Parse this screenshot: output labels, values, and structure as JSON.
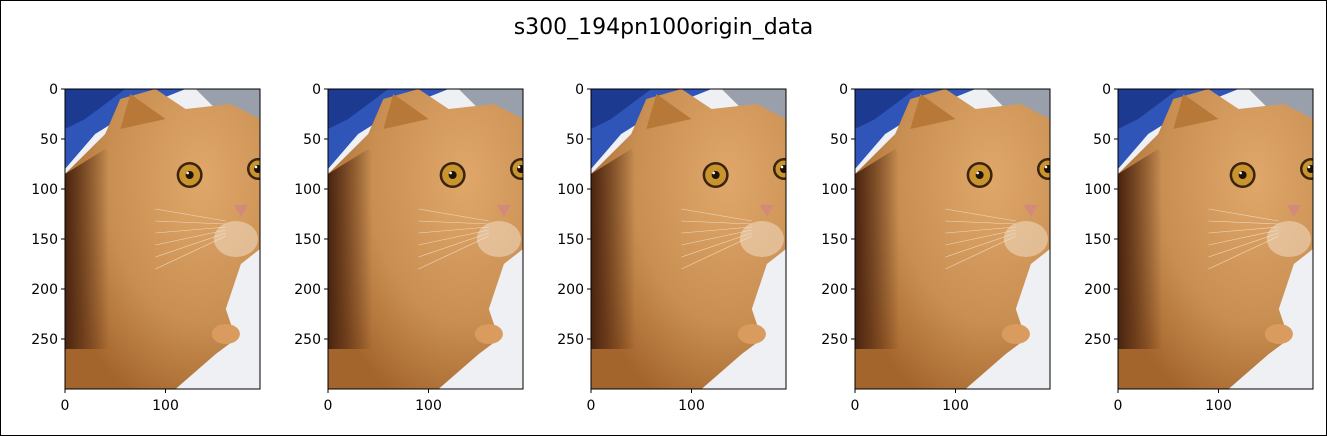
{
  "figure": {
    "title": "s300_194pn100origin_data"
  },
  "panel_count": 5,
  "image_subject": "orange tabby cat lying on a white blanket with blue fabric in upper-left corner",
  "image_size": {
    "width": 194,
    "height": 300
  },
  "axes": {
    "y_ticks": [
      "0",
      "50",
      "100",
      "150",
      "200",
      "250"
    ],
    "y_values": [
      0,
      50,
      100,
      150,
      200,
      250
    ],
    "x_ticks": [
      "0",
      "100"
    ],
    "x_values": [
      0,
      100
    ]
  },
  "colors": {
    "background": "#ffffff",
    "frame": "#000000",
    "cat_fur": "#c98f52",
    "cat_shadow": "#4a2410",
    "blanket": "#eef0f4",
    "blue_fabric": "#2f55b8",
    "eye": "#c9932e"
  }
}
